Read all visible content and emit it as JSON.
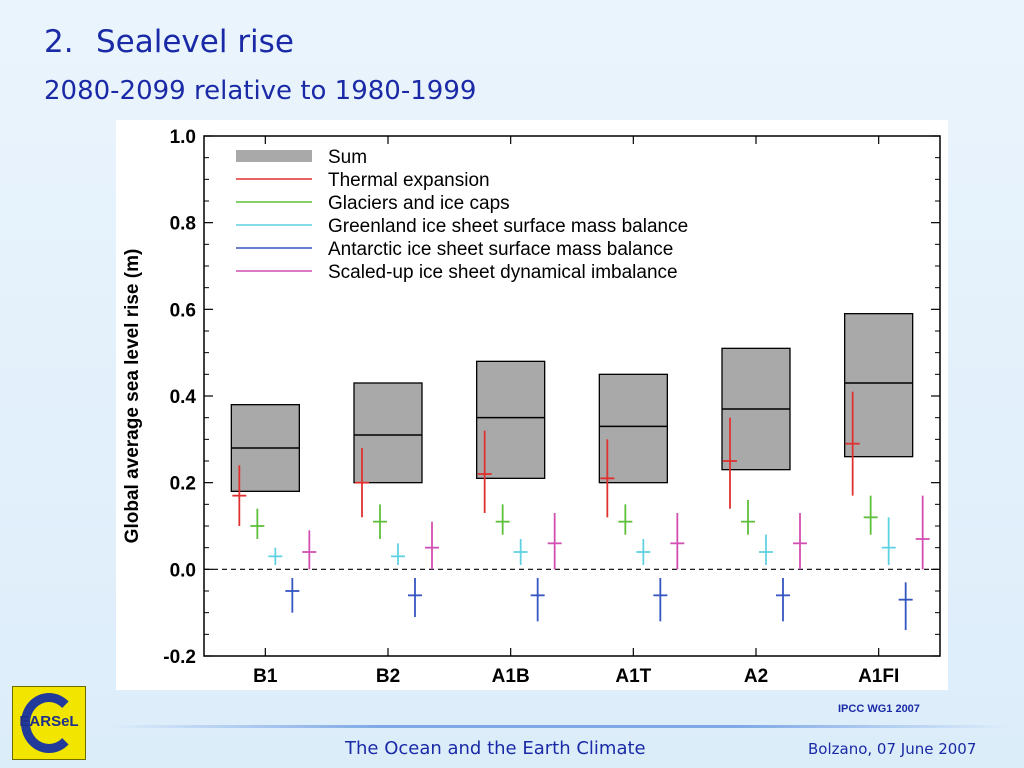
{
  "slide": {
    "number": "2.",
    "title": "Sealevel rise",
    "subtitle": "2080-2099 relative to 1980-1999",
    "source": "IPCC WG1 2007",
    "footer_center": "The Ocean and the Earth Climate",
    "footer_right": "Bolzano, 07 June 2007",
    "logo_text": "EARSeL"
  },
  "chart_data": {
    "type": "bar",
    "ylabel": "Global average sea level rise (m)",
    "xlabel": "",
    "ylim": [
      -0.2,
      1.0
    ],
    "yticks": [
      "1.0",
      "0.8",
      "0.6",
      "0.4",
      "0.2",
      "0.0",
      "-0.2"
    ],
    "ytick_values": [
      1.0,
      0.8,
      0.6,
      0.4,
      0.2,
      0.0,
      -0.2
    ],
    "categories": [
      "B1",
      "B2",
      "A1B",
      "A1T",
      "A2",
      "A1FI"
    ],
    "zero_line": "dashed",
    "legend_position": "top-left",
    "sum": {
      "name": "Sum",
      "color": "#a9a9a9",
      "low": [
        0.18,
        0.2,
        0.21,
        0.2,
        0.23,
        0.26
      ],
      "mid": [
        0.28,
        0.31,
        0.35,
        0.33,
        0.37,
        0.43
      ],
      "high": [
        0.38,
        0.43,
        0.48,
        0.45,
        0.51,
        0.59
      ]
    },
    "series": [
      {
        "name": "Thermal expansion",
        "color": "#e03030",
        "mid": [
          0.17,
          0.2,
          0.22,
          0.21,
          0.25,
          0.29
        ],
        "low": [
          0.1,
          0.12,
          0.13,
          0.12,
          0.14,
          0.17
        ],
        "high": [
          0.24,
          0.28,
          0.32,
          0.3,
          0.35,
          0.41
        ]
      },
      {
        "name": "Glaciers and ice caps",
        "color": "#5dbf3a",
        "mid": [
          0.1,
          0.11,
          0.11,
          0.11,
          0.11,
          0.12
        ],
        "low": [
          0.07,
          0.07,
          0.08,
          0.08,
          0.08,
          0.08
        ],
        "high": [
          0.14,
          0.15,
          0.15,
          0.15,
          0.16,
          0.17
        ]
      },
      {
        "name": "Greenland ice sheet surface mass balance",
        "color": "#5fd2e2",
        "mid": [
          0.03,
          0.03,
          0.04,
          0.04,
          0.04,
          0.05
        ],
        "low": [
          0.01,
          0.01,
          0.01,
          0.01,
          0.01,
          0.01
        ],
        "high": [
          0.05,
          0.06,
          0.07,
          0.07,
          0.08,
          0.12
        ]
      },
      {
        "name": "Antarctic ice sheet surface mass balance",
        "color": "#3555c0",
        "mid": [
          -0.05,
          -0.06,
          -0.06,
          -0.06,
          -0.06,
          -0.07
        ],
        "low": [
          -0.1,
          -0.11,
          -0.12,
          -0.12,
          -0.12,
          -0.14
        ],
        "high": [
          -0.02,
          -0.02,
          -0.02,
          -0.02,
          -0.02,
          -0.03
        ]
      },
      {
        "name": "Scaled-up ice sheet dynamical imbalance",
        "color": "#d24fb2",
        "mid": [
          0.04,
          0.05,
          0.06,
          0.06,
          0.06,
          0.07
        ],
        "low": [
          0.0,
          0.0,
          0.0,
          0.0,
          0.0,
          0.0
        ],
        "high": [
          0.09,
          0.11,
          0.13,
          0.13,
          0.13,
          0.17
        ]
      }
    ]
  }
}
